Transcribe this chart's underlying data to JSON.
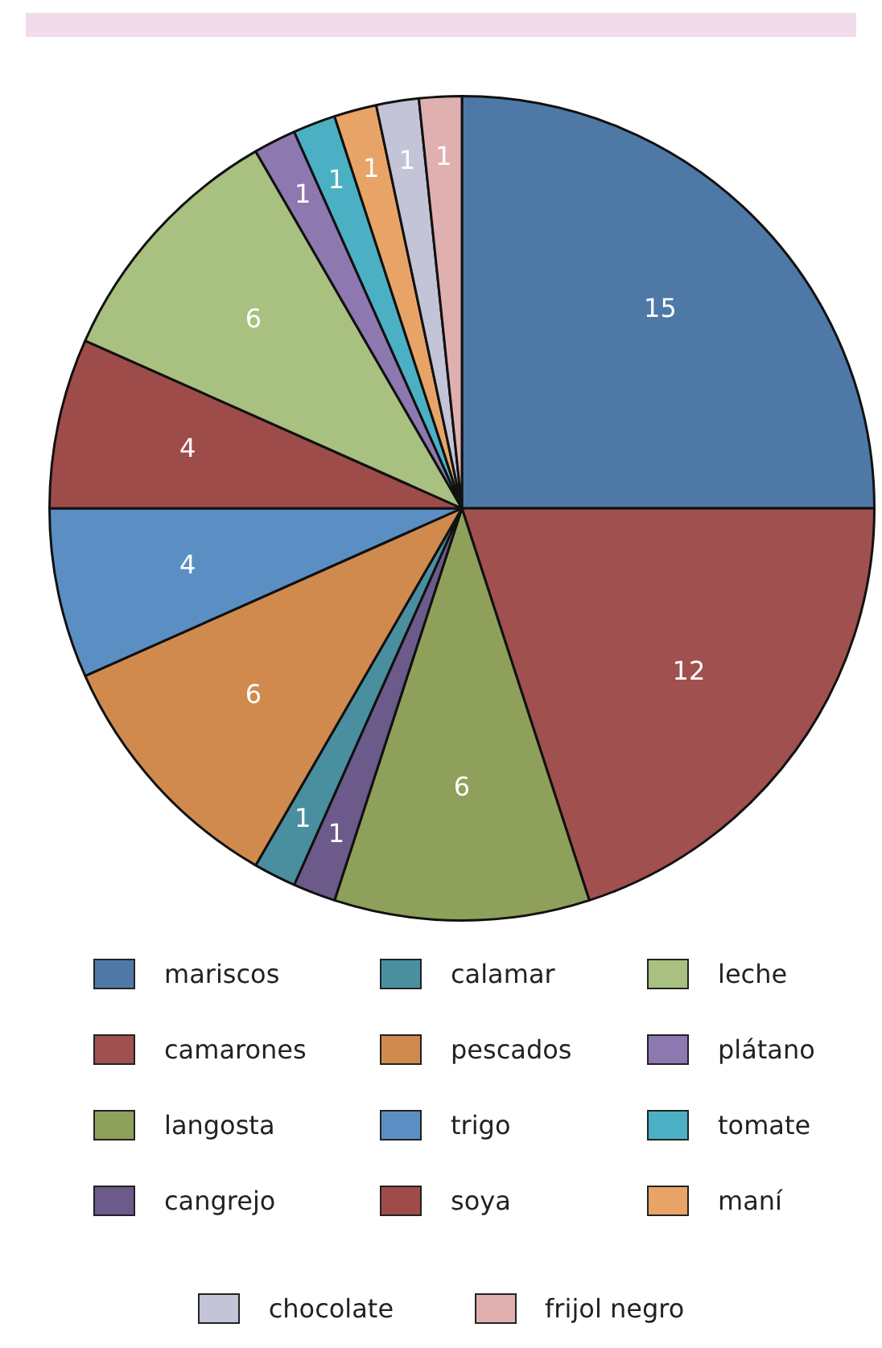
{
  "chart_data": {
    "type": "pie",
    "categories": [
      "mariscos",
      "camarones",
      "langosta",
      "cangrejo",
      "calamar",
      "pescados",
      "trigo",
      "soya",
      "leche",
      "plátano",
      "tomate",
      "maní",
      "chocolate",
      "frijol negro"
    ],
    "values": [
      15,
      12,
      6,
      1,
      1,
      6,
      4,
      4,
      6,
      1,
      1,
      1,
      1,
      1
    ],
    "colors": [
      "#4e79a7",
      "#a0504e",
      "#8ea05a",
      "#6c5a8a",
      "#4a8fa0",
      "#d08a4e",
      "#5b8fc4",
      "#9e4c4a",
      "#a8c080",
      "#8e78b0",
      "#4bb0c4",
      "#e8a466",
      "#c4c4d8",
      "#e0b0b0"
    ],
    "data_labels": true,
    "legend": "bottom"
  }
}
